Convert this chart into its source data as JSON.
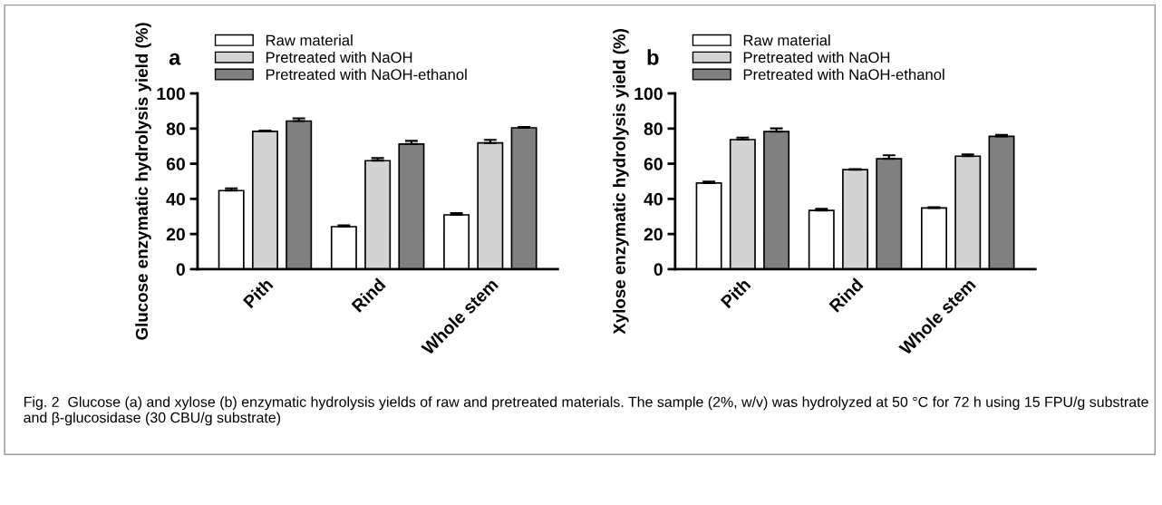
{
  "chart_data": [
    {
      "type": "bar",
      "title": "a",
      "ylabel": "Glucose enzymatic hydrolysis yield (%)",
      "categories": [
        "Pith",
        "Rind",
        "Whole stem"
      ],
      "ylim": [
        0,
        100
      ],
      "yticks": [
        0,
        20,
        40,
        60,
        80,
        100
      ],
      "legend": "top",
      "grid": false,
      "series": [
        {
          "name": "Raw material",
          "color": "#ffffff",
          "values": [
            44.7,
            24.2,
            30.9
          ],
          "errors": [
            1.3,
            0.8,
            1.0
          ]
        },
        {
          "name": "Pretreated with NaOH",
          "color": "#d3d3d3",
          "values": [
            78.4,
            61.7,
            71.8
          ],
          "errors": [
            0.5,
            1.5,
            1.8
          ]
        },
        {
          "name": "Pretreated with NaOH-ethanol",
          "color": "#808080",
          "values": [
            84.3,
            71.2,
            80.4
          ],
          "errors": [
            1.5,
            1.8,
            0.5
          ]
        }
      ],
      "annotations": [
        "Fig. 2  Glucose (a) and xylose (b) enzymatic hydrolysis yields of raw and pretreated materials. The sample (2%, w/v) was hydrolyzed at 50 °C for 72 h using 15 FPU/g substrate and β-glucosidase (30 CBU/g substrate)"
      ]
    },
    {
      "type": "bar",
      "title": "b",
      "ylabel": "Xylose enzymatic hydrolysis yield (%)",
      "categories": [
        "Pith",
        "Rind",
        "Whole stem"
      ],
      "ylim": [
        0,
        100
      ],
      "yticks": [
        0,
        20,
        40,
        60,
        80,
        100
      ],
      "legend": "top",
      "grid": false,
      "series": [
        {
          "name": "Raw material",
          "color": "#ffffff",
          "values": [
            49.0,
            33.4,
            34.8
          ],
          "errors": [
            0.8,
            1.0,
            0.4
          ]
        },
        {
          "name": "Pretreated with NaOH",
          "color": "#d3d3d3",
          "values": [
            73.7,
            56.6,
            64.3
          ],
          "errors": [
            1.2,
            0.3,
            1.0
          ]
        },
        {
          "name": "Pretreated with NaOH-ethanol",
          "color": "#808080",
          "values": [
            78.3,
            62.8,
            75.6
          ],
          "errors": [
            1.8,
            2.0,
            0.8
          ]
        }
      ]
    }
  ]
}
